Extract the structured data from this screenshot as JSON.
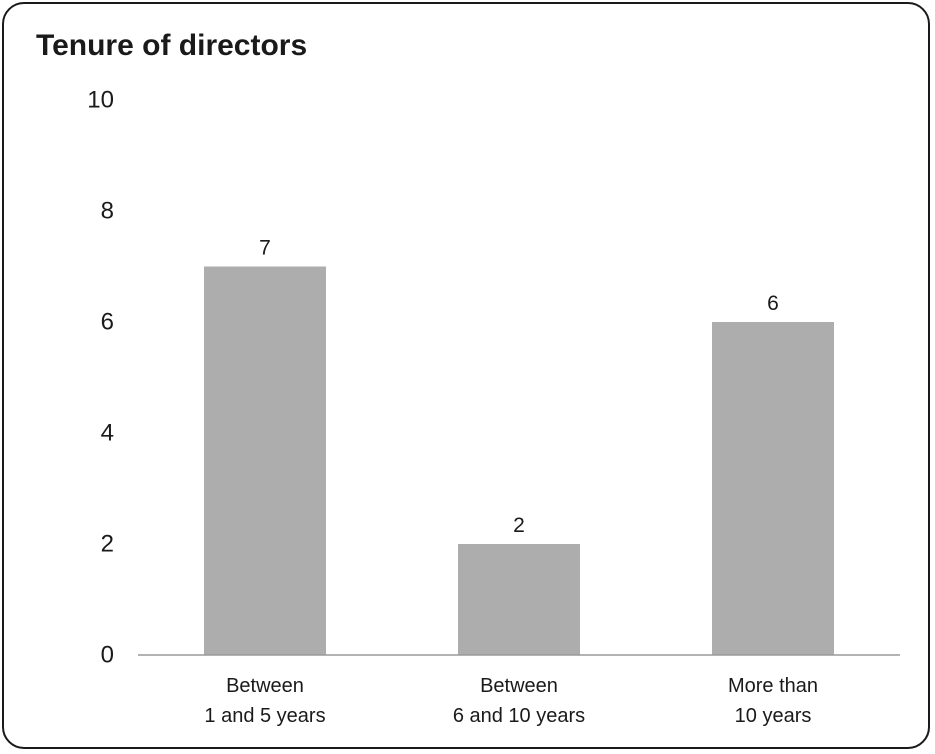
{
  "chart_data": {
    "type": "bar",
    "title": "Tenure of directors",
    "categories": [
      [
        "Between",
        "1 and 5 years"
      ],
      [
        "Between",
        "6 and 10 years"
      ],
      [
        "More than",
        "10 years"
      ]
    ],
    "values": [
      7,
      2,
      6
    ],
    "data_labels": [
      "7",
      "2",
      "6"
    ],
    "ylim": [
      0,
      10
    ],
    "yticks": [
      0,
      2,
      4,
      6,
      8,
      10
    ],
    "xlabel": "",
    "ylabel": "",
    "grid": false,
    "legend": "none",
    "bar_color": "#adadad",
    "axis_color": "#9a9a9a",
    "text_color": "#1a1a1a"
  }
}
